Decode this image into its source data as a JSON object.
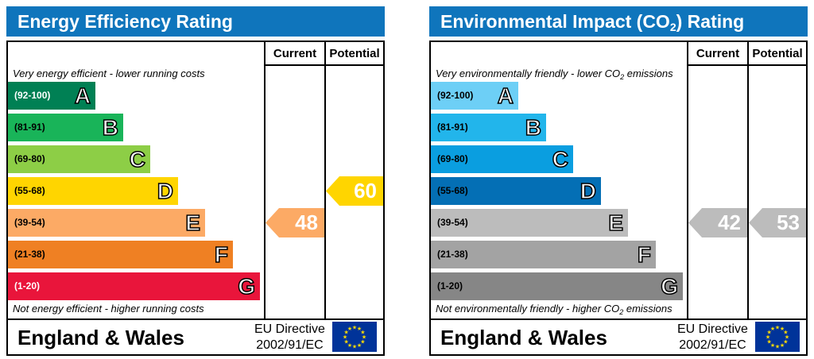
{
  "chart_data": [
    {
      "type": "bar",
      "title": "Energy Efficiency Rating",
      "columns": [
        "Current",
        "Potential"
      ],
      "top_note": "Very energy efficient - lower running costs",
      "bottom_note": "Not energy efficient - higher running costs",
      "categories": [
        "A",
        "B",
        "C",
        "D",
        "E",
        "F",
        "G"
      ],
      "ranges": [
        "(92-100)",
        "(81-91)",
        "(69-80)",
        "(55-68)",
        "(39-54)",
        "(21-38)",
        "(1-20)"
      ],
      "band_colors": [
        "#008054",
        "#19b459",
        "#8dce46",
        "#ffd500",
        "#fcaa65",
        "#ef8023",
        "#e9153b"
      ],
      "current": 48,
      "potential": 60,
      "current_color": "#fcaa65",
      "potential_color": "#ffd500",
      "footer": "England & Wales",
      "directive_line1": "EU Directive",
      "directive_line2": "2002/91/EC"
    },
    {
      "type": "bar",
      "title_prefix": "Environmental Impact (CO",
      "title_sub": "2",
      "title_suffix": ") Rating",
      "columns": [
        "Current",
        "Potential"
      ],
      "top_note_prefix": "Very environmentally friendly - lower CO",
      "top_note_sub": "2",
      "top_note_suffix": " emissions",
      "bottom_note_prefix": "Not environmentally friendly - higher CO",
      "bottom_note_sub": "2",
      "bottom_note_suffix": " emissions",
      "categories": [
        "A",
        "B",
        "C",
        "D",
        "E",
        "F",
        "G"
      ],
      "ranges": [
        "(92-100)",
        "(81-91)",
        "(69-80)",
        "(55-68)",
        "(39-54)",
        "(21-38)",
        "(1-20)"
      ],
      "band_colors": [
        "#6dcff6",
        "#22b5eb",
        "#0a9ee0",
        "#046fb5",
        "#bcbcbc",
        "#a3a3a3",
        "#868686"
      ],
      "current": 42,
      "potential": 53,
      "current_color": "#bcbcbc",
      "potential_color": "#bcbcbc",
      "footer": "England & Wales",
      "directive_line1": "EU Directive",
      "directive_line2": "2002/91/EC"
    }
  ],
  "colors": {
    "title_bar": "#0f75bc",
    "flag": "#003399",
    "flag_star": "#ffdd00"
  }
}
